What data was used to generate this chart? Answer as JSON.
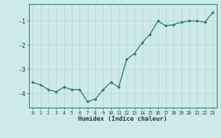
{
  "x": [
    0,
    1,
    2,
    3,
    4,
    5,
    6,
    7,
    8,
    9,
    10,
    11,
    12,
    13,
    14,
    15,
    16,
    17,
    18,
    19,
    20,
    21,
    22,
    23
  ],
  "y": [
    -3.55,
    -3.65,
    -3.85,
    -3.95,
    -3.75,
    -3.85,
    -3.85,
    -4.35,
    -4.25,
    -3.85,
    -3.55,
    -3.75,
    -2.6,
    -2.35,
    -1.9,
    -1.55,
    -1.0,
    -1.2,
    -1.15,
    -1.05,
    -1.0,
    -1.0,
    -1.05,
    -0.65
  ],
  "xlabel": "Humidex (Indice chaleur)",
  "line_color": "#2d7d6e",
  "marker_color": "#2d7d6e",
  "bg_color": "#ceeae8",
  "grid_color": "#b8d8d6",
  "axis_color": "#2d7d6e",
  "tick_label_color": "#1a3a3a",
  "xlabel_color": "#1a3a3a",
  "ylim": [
    -4.6,
    -0.3
  ],
  "xlim": [
    -0.5,
    23.5
  ],
  "yticks": [
    -4,
    -3,
    -2,
    -1
  ],
  "xtick_labels": [
    "0",
    "1",
    "2",
    "3",
    "4",
    "5",
    "6",
    "7",
    "8",
    "9",
    "10",
    "11",
    "12",
    "13",
    "14",
    "15",
    "16",
    "17",
    "18",
    "19",
    "20",
    "21",
    "22",
    "23"
  ]
}
